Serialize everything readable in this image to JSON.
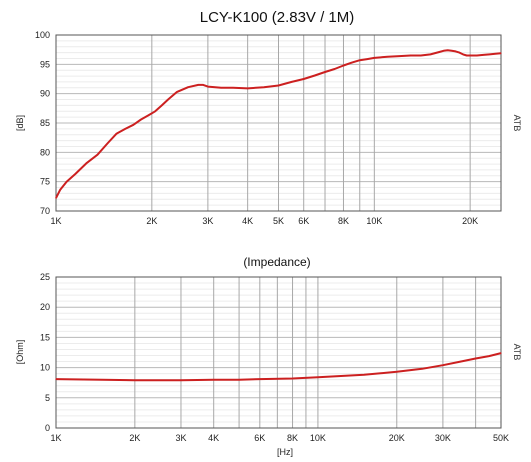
{
  "chart_data": [
    {
      "type": "line",
      "title": "LCY-K100 (2.83V / 1M)",
      "xlabel": "",
      "ylabel": "[dB]",
      "side_label": "ATB",
      "x_scale": "log",
      "xlim": [
        1000,
        25000
      ],
      "ylim": [
        70,
        100
      ],
      "x_ticks": [
        1000,
        2000,
        3000,
        4000,
        5000,
        6000,
        8000,
        10000,
        20000
      ],
      "x_tick_labels": [
        "1K",
        "2K",
        "3K",
        "4K",
        "5K",
        "6K",
        "8K",
        "10K",
        "20K"
      ],
      "x_grid": [
        1000,
        2000,
        3000,
        4000,
        5000,
        6000,
        7000,
        8000,
        9000,
        10000,
        20000
      ],
      "y_ticks": [
        70,
        75,
        80,
        85,
        90,
        95,
        100
      ],
      "grid": true,
      "series": [
        {
          "color": "#cc2020",
          "x": [
            1000,
            1030,
            1080,
            1150,
            1250,
            1350,
            1450,
            1550,
            1650,
            1750,
            1850,
            1950,
            2050,
            2150,
            2250,
            2400,
            2600,
            2800,
            2900,
            3000,
            3300,
            3600,
            4000,
            4500,
            5000,
            5500,
            6000,
            6500,
            7000,
            7500,
            8000,
            8500,
            9000,
            9500,
            10000,
            11000,
            12000,
            13000,
            14000,
            15000,
            16000,
            16500,
            17000,
            17500,
            18000,
            18500,
            19000,
            19500,
            20000,
            21000,
            22000,
            23000,
            24000,
            25000
          ],
          "y": [
            72.2,
            73.6,
            75.0,
            76.3,
            78.2,
            79.6,
            81.5,
            83.2,
            84.0,
            84.7,
            85.6,
            86.3,
            87.0,
            88.0,
            89.0,
            90.3,
            91.1,
            91.5,
            91.5,
            91.2,
            91.0,
            91.0,
            90.9,
            91.1,
            91.4,
            92.0,
            92.5,
            93.1,
            93.7,
            94.2,
            94.8,
            95.3,
            95.7,
            95.9,
            96.1,
            96.3,
            96.4,
            96.5,
            96.5,
            96.7,
            97.1,
            97.3,
            97.4,
            97.3,
            97.2,
            97.0,
            96.7,
            96.5,
            96.5,
            96.5,
            96.6,
            96.7,
            96.8,
            96.9
          ]
        }
      ]
    },
    {
      "type": "line",
      "title": "(Impedance)",
      "xlabel": "[Hz]",
      "ylabel": "[Ohm]",
      "side_label": "ATB",
      "x_scale": "log",
      "xlim": [
        1000,
        50000
      ],
      "ylim": [
        0,
        25
      ],
      "x_ticks": [
        1000,
        2000,
        3000,
        4000,
        6000,
        8000,
        10000,
        20000,
        30000,
        50000
      ],
      "x_tick_labels": [
        "1K",
        "2K",
        "3K",
        "4K",
        "6K",
        "8K",
        "10K",
        "20K",
        "30K",
        "50K"
      ],
      "x_grid": [
        1000,
        2000,
        3000,
        4000,
        5000,
        6000,
        7000,
        8000,
        9000,
        10000,
        20000,
        30000,
        40000,
        50000
      ],
      "y_ticks": [
        0,
        5,
        10,
        15,
        20,
        25
      ],
      "grid": true,
      "series": [
        {
          "color": "#cc2020",
          "x": [
            1000,
            1500,
            2000,
            2500,
            3000,
            4000,
            5000,
            6000,
            8000,
            10000,
            15000,
            20000,
            25000,
            30000,
            35000,
            40000,
            45000,
            50000
          ],
          "y": [
            8.1,
            8.0,
            7.9,
            7.9,
            7.9,
            8.0,
            8.0,
            8.1,
            8.2,
            8.4,
            8.8,
            9.3,
            9.8,
            10.4,
            11.0,
            11.5,
            11.9,
            12.4
          ]
        }
      ]
    }
  ]
}
